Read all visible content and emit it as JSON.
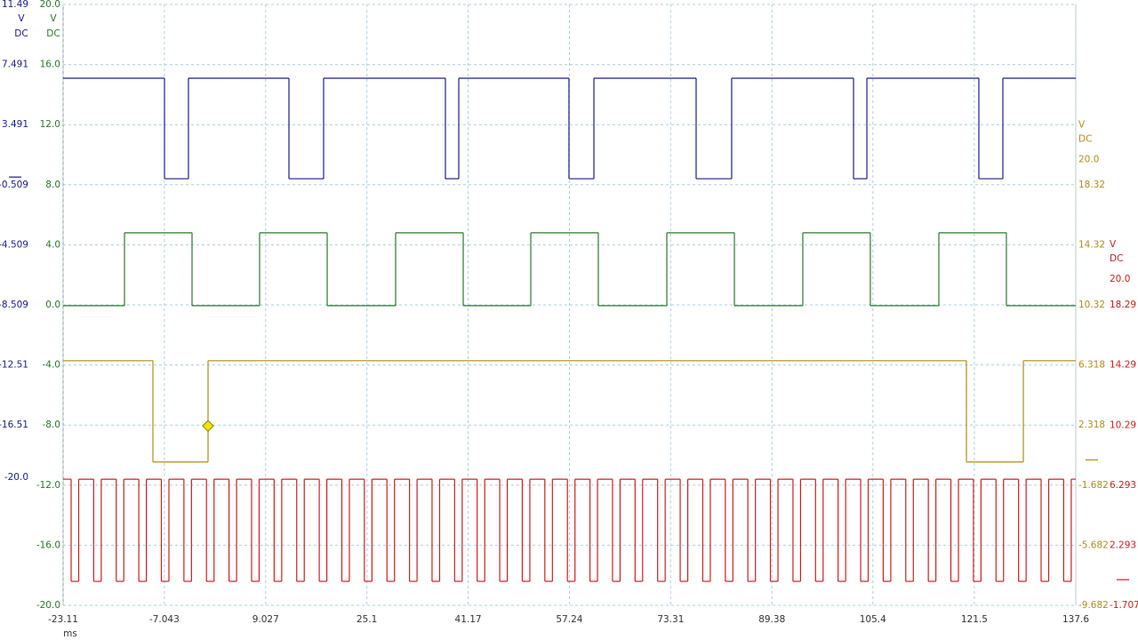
{
  "chart_data": {
    "type": "line",
    "step": true,
    "xlabel": "ms",
    "xlim": [
      -23.11,
      137.6
    ],
    "xticks": [
      -23.11,
      -7.043,
      9.027,
      25.1,
      41.17,
      57.24,
      73.31,
      89.38,
      105.4,
      121.5,
      137.6
    ],
    "grid": true,
    "series": [
      {
        "color": "#1c1c8e",
        "side": "left",
        "unit": "V",
        "coupling": "DC",
        "zero_marker": true,
        "ylim": [
          -20,
          11.49
        ],
        "yticks": [
          11.49,
          7.491,
          3.491,
          -0.509,
          -4.509,
          -8.509,
          -12.51,
          -16.51,
          {
            "value": -20,
            "label": "-20.0"
          }
        ],
        "x": [
          -23.11,
          -7.02,
          -3.22,
          12.73,
          18.23,
          37.56,
          39.68,
          57.17,
          61.13,
          77.35,
          82.99,
          102.33,
          104.45,
          122.22,
          126.03
        ],
        "values": [
          6.58,
          -0.11,
          6.58,
          -0.11,
          6.58,
          -0.11,
          6.58,
          -0.11,
          6.58,
          -0.11,
          6.58,
          -0.11,
          6.58,
          -0.11,
          6.58
        ]
      },
      {
        "color": "#2a7a2a",
        "side": "left",
        "unit": "V",
        "coupling": "DC",
        "zero_marker": false,
        "ylim": [
          -20,
          20
        ],
        "yticks": [
          {
            "value": 20,
            "label": "20.0"
          },
          {
            "value": 16,
            "label": "16.0"
          },
          {
            "value": 12,
            "label": "12.0"
          },
          {
            "value": 8,
            "label": "8.0"
          },
          {
            "value": 4,
            "label": "4.0"
          },
          {
            "value": 0,
            "label": "0.0"
          },
          {
            "value": -4,
            "label": "-4.0"
          },
          {
            "value": -8,
            "label": "-8.0"
          },
          {
            "value": -12,
            "label": "-12.0"
          },
          {
            "value": -16,
            "label": "-16.0"
          },
          {
            "value": -20,
            "label": "-20.0"
          }
        ],
        "x": [
          -23.11,
          -13.37,
          -2.65,
          8.07,
          18.8,
          29.66,
          40.39,
          51.11,
          61.83,
          72.7,
          83.42,
          94.28,
          105.0,
          115.87,
          126.59
        ],
        "values": [
          -0.05,
          4.8,
          -0.05,
          4.8,
          -0.05,
          4.8,
          -0.05,
          4.8,
          -0.05,
          4.8,
          -0.05,
          4.8,
          -0.05,
          4.8,
          -0.05
        ]
      },
      {
        "color": "#b08c1c",
        "side": "right",
        "unit": "V",
        "coupling": "DC",
        "zero_marker": true,
        "ylim": [
          -9.682,
          20
        ],
        "yticks": [
          {
            "value": 20,
            "label": "20.0"
          },
          18.32,
          14.32,
          10.32,
          6.318,
          2.318,
          -1.682,
          -5.682,
          -9.682
        ],
        "x": [
          -23.11,
          -8.86,
          -0.11,
          120.25,
          129.28
        ],
        "values": [
          6.6,
          -0.14,
          6.6,
          -0.14,
          6.6
        ],
        "trigger": {
          "x": -0.11,
          "y": 2.26,
          "color": "#f2e600"
        }
      },
      {
        "color": "#cc2020",
        "side": "right",
        "unit": "V",
        "coupling": "DC",
        "zero_marker": true,
        "ylim": [
          -1.707,
          20
        ],
        "yticks": [
          {
            "value": 20,
            "label": "20.0"
          },
          18.29,
          14.29,
          10.29,
          6.293,
          2.293,
          -1.707
        ],
        "x": [
          -23.11,
          -21.84,
          -20.64,
          -18.26,
          -17.06,
          -14.68,
          -13.48,
          -11.1,
          -9.9,
          -7.52,
          -6.32,
          -3.94,
          -2.74,
          -0.36,
          0.84,
          3.22,
          4.42,
          6.8,
          8.0,
          10.38,
          11.58,
          13.96,
          15.16,
          17.54,
          18.74,
          21.12,
          22.32,
          24.7,
          25.9,
          28.28,
          29.48,
          31.86,
          33.06,
          35.44,
          36.64,
          39.02,
          40.22,
          42.6,
          43.8,
          46.18,
          47.38,
          49.76,
          50.96,
          53.34,
          54.54,
          56.92,
          58.12,
          60.5,
          61.7,
          64.08,
          65.28,
          67.66,
          68.86,
          71.24,
          72.44,
          74.82,
          76.02,
          78.4,
          79.6,
          81.98,
          83.18,
          85.56,
          86.76,
          89.14,
          90.34,
          92.72,
          93.92,
          96.3,
          97.5,
          99.88,
          101.08,
          103.46,
          104.66,
          107.04,
          108.24,
          110.62,
          111.82,
          114.2,
          115.4,
          117.78,
          118.98,
          121.36,
          122.56,
          124.94,
          126.14,
          128.52,
          129.72,
          132.1,
          133.3,
          135.68,
          136.88
        ],
        "values": [
          6.69,
          -0.11,
          6.69,
          -0.11,
          6.69,
          -0.11,
          6.69,
          -0.11,
          6.69,
          -0.11,
          6.69,
          -0.11,
          6.69,
          -0.11,
          6.69,
          -0.11,
          6.69,
          -0.11,
          6.69,
          -0.11,
          6.69,
          -0.11,
          6.69,
          -0.11,
          6.69,
          -0.11,
          6.69,
          -0.11,
          6.69,
          -0.11,
          6.69,
          -0.11,
          6.69,
          -0.11,
          6.69,
          -0.11,
          6.69,
          -0.11,
          6.69,
          -0.11,
          6.69,
          -0.11,
          6.69,
          -0.11,
          6.69,
          -0.11,
          6.69,
          -0.11,
          6.69,
          -0.11,
          6.69,
          -0.11,
          6.69,
          -0.11,
          6.69,
          -0.11,
          6.69,
          -0.11,
          6.69,
          -0.11,
          6.69,
          -0.11,
          6.69,
          -0.11,
          6.69,
          -0.11,
          6.69,
          -0.11,
          6.69,
          -0.11,
          6.69,
          -0.11,
          6.69,
          -0.11,
          6.69,
          -0.11,
          6.69,
          -0.11,
          6.69,
          -0.11,
          6.69,
          -0.11,
          6.69,
          -0.11,
          6.69,
          -0.11,
          6.69,
          -0.11,
          6.69,
          -0.11,
          6.69
        ]
      }
    ]
  }
}
